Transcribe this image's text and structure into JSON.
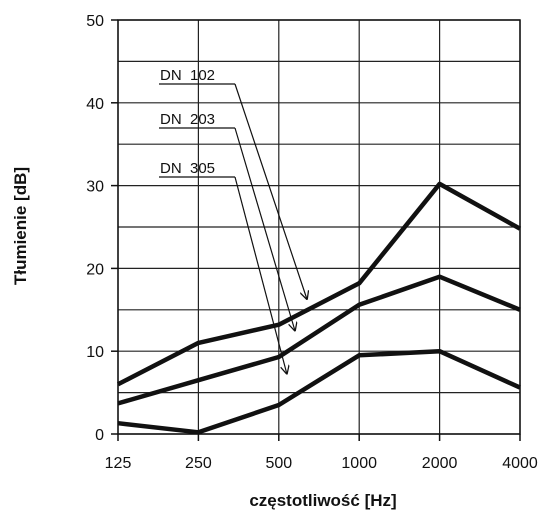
{
  "chart_data": {
    "type": "line",
    "ylabel": "Tłumienie [dB]",
    "xlabel": "częstotliwość [Hz]",
    "categories": [
      "125",
      "250",
      "500",
      "1000",
      "2000",
      "4000"
    ],
    "ylim": [
      0,
      50
    ],
    "yticks": [
      "0",
      "10",
      "20",
      "30",
      "40",
      "50"
    ],
    "grid": true,
    "series": [
      {
        "name": "DN  102",
        "values": [
          6,
          11,
          13.2,
          18.2,
          30.2,
          24.8
        ]
      },
      {
        "name": "DN  203",
        "values": [
          3.7,
          6.5,
          9.3,
          15.6,
          19,
          15
        ]
      },
      {
        "name": "DN  305",
        "values": [
          1.3,
          0.2,
          3.5,
          9.5,
          10,
          5.6
        ]
      }
    ],
    "annotation_targets": [
      {
        "series": "DN  102",
        "x": 2.35,
        "y": 16.3
      },
      {
        "series": "DN  203",
        "x": 2.2,
        "y": 12.5
      },
      {
        "series": "DN  305",
        "x": 2.1,
        "y": 7.3
      }
    ],
    "series_color": "#111111"
  }
}
